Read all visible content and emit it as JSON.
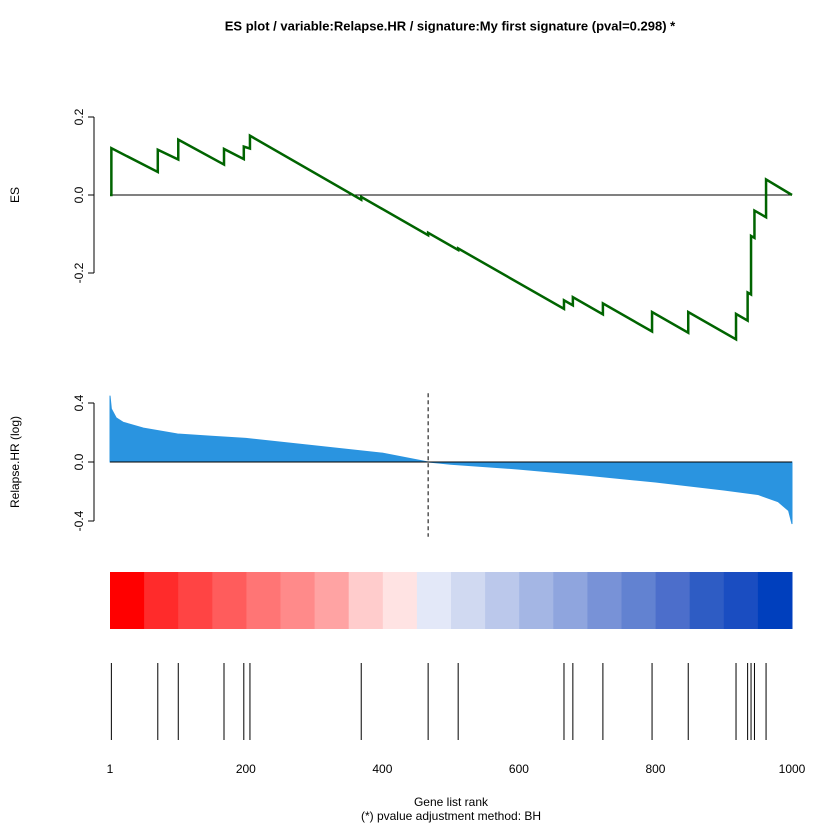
{
  "chart_data": [
    {
      "type": "line",
      "title": "ES  plot /  variable:Relapse.HR / signature:My first signature (pval=0.298) *",
      "ylabel": "ES",
      "color": "#006400",
      "xlim": [
        1,
        1000
      ],
      "ylim": [
        -0.4,
        0.25
      ],
      "yticks": [
        -0.2,
        {
          "value": 0,
          "label": "0.0"
        },
        0.2
      ],
      "x": [
        1,
        3,
        3,
        71,
        71,
        101,
        101,
        168,
        168,
        197,
        197,
        206,
        206,
        369,
        369,
        467,
        467,
        511,
        511,
        666,
        666,
        679,
        679,
        723,
        723,
        795,
        795,
        848,
        848,
        918,
        918,
        935,
        935,
        940,
        940,
        945,
        945,
        962,
        962,
        1000
      ],
      "values": [
        0,
        0,
        0.12,
        0.059,
        0.116,
        0.091,
        0.142,
        0.078,
        0.118,
        0.092,
        0.124,
        0.119,
        0.152,
        -0.012,
        -0.005,
        -0.103,
        -0.097,
        -0.141,
        -0.137,
        -0.292,
        -0.27,
        -0.283,
        -0.262,
        -0.306,
        -0.278,
        -0.35,
        -0.3,
        -0.353,
        -0.3,
        -0.37,
        -0.305,
        -0.322,
        -0.25,
        -0.255,
        -0.105,
        -0.11,
        -0.04,
        -0.057,
        0.04,
        0
      ]
    },
    {
      "type": "area",
      "ylabel": "Relapse.HR (log)",
      "color": "#2a94e0",
      "xlim": [
        1,
        1000
      ],
      "ylim": [
        -0.5,
        0.5
      ],
      "yticks": [
        -0.4,
        {
          "value": 0,
          "label": "0.0"
        },
        0.4
      ],
      "vline": 467,
      "x": [
        1,
        3,
        10,
        20,
        50,
        100,
        150,
        200,
        300,
        400,
        467,
        500,
        600,
        700,
        800,
        900,
        950,
        980,
        995,
        1000
      ],
      "values": [
        0.45,
        0.36,
        0.3,
        0.27,
        0.23,
        0.19,
        0.175,
        0.16,
        0.11,
        0.06,
        0,
        -0.015,
        -0.048,
        -0.09,
        -0.136,
        -0.19,
        -0.22,
        -0.27,
        -0.33,
        -0.42
      ]
    },
    {
      "type": "colorbar",
      "xlim": [
        1,
        1000
      ],
      "colors": [
        "#ff0000",
        "#ff2b2b",
        "#ff4444",
        "#ff5c5c",
        "#ff7575",
        "#ff8a8a",
        "#ffa3a3",
        "#ffcccc",
        "#ffe3e3",
        "#e3e8f8",
        "#d0d9f1",
        "#bbc8eb",
        "#a4b6e4",
        "#8fa5de",
        "#7892d7",
        "#6282d1",
        "#4c6ecb",
        "#2e5cc4",
        "#1a4dc1",
        "#003fbd"
      ]
    },
    {
      "type": "rug",
      "xlim": [
        1,
        1000
      ],
      "xticks": [
        1,
        200,
        400,
        600,
        800,
        1000
      ],
      "xlabel": "Gene list rank",
      "note": "(*) pvalue adjustment method: BH",
      "x": [
        3,
        71,
        101,
        168,
        197,
        206,
        369,
        467,
        511,
        666,
        679,
        723,
        795,
        848,
        918,
        935,
        940,
        945,
        962
      ]
    }
  ]
}
